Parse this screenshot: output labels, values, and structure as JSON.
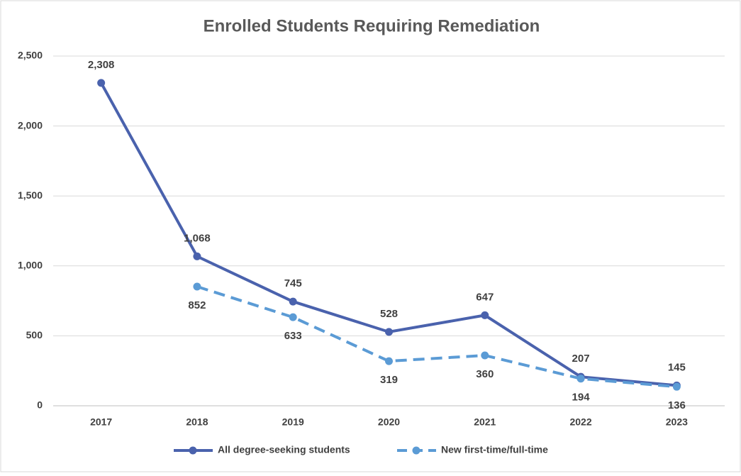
{
  "chart_data": {
    "type": "line",
    "title": "Enrolled Students Requiring Remediation",
    "categories": [
      "2017",
      "2018",
      "2019",
      "2020",
      "2021",
      "2022",
      "2023"
    ],
    "series": [
      {
        "name": "All degree-seeking students",
        "color": "#4a62ad",
        "dashed": false,
        "values": [
          2308,
          1068,
          745,
          528,
          647,
          207,
          145
        ],
        "value_labels": [
          "2,308",
          "1,068",
          "745",
          "528",
          "647",
          "207",
          "145"
        ]
      },
      {
        "name": "New first-time/full-time",
        "color": "#5b9bd5",
        "dashed": true,
        "values": [
          null,
          852,
          633,
          319,
          360,
          194,
          136
        ],
        "value_labels": [
          null,
          "852",
          "633",
          "319",
          "360",
          "194",
          "136"
        ]
      }
    ],
    "ylim": [
      0,
      2500
    ],
    "yticks": [
      0,
      500,
      {
        "value": 1000,
        "label": "1,000"
      },
      {
        "value": 1500,
        "label": "1,500"
      },
      {
        "value": 2000,
        "label": "2,000"
      },
      {
        "value": 2500,
        "label": "2,500"
      }
    ],
    "grid": true,
    "legend": "bottom"
  }
}
